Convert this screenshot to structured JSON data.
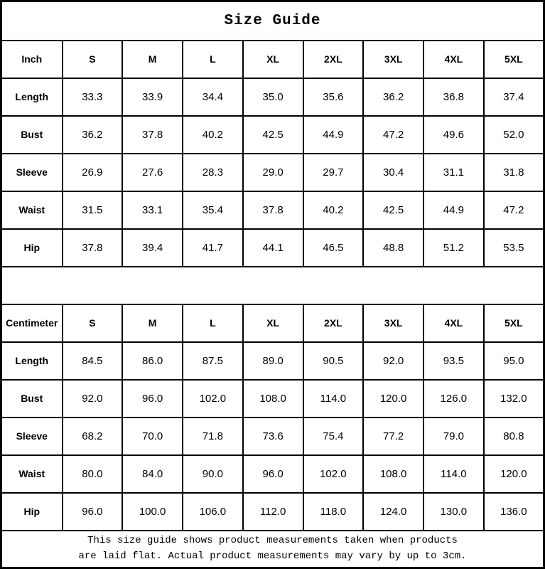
{
  "title": "Size Guide",
  "tables": [
    {
      "unit_label": "Inch",
      "size_headers": [
        "S",
        "M",
        "L",
        "XL",
        "2XL",
        "3XL",
        "4XL",
        "5XL"
      ],
      "rows": [
        {
          "label": "Length",
          "values": [
            "33.3",
            "33.9",
            "34.4",
            "35.0",
            "35.6",
            "36.2",
            "36.8",
            "37.4"
          ]
        },
        {
          "label": "Bust",
          "values": [
            "36.2",
            "37.8",
            "40.2",
            "42.5",
            "44.9",
            "47.2",
            "49.6",
            "52.0"
          ]
        },
        {
          "label": "Sleeve",
          "values": [
            "26.9",
            "27.6",
            "28.3",
            "29.0",
            "29.7",
            "30.4",
            "31.1",
            "31.8"
          ]
        },
        {
          "label": "Waist",
          "values": [
            "31.5",
            "33.1",
            "35.4",
            "37.8",
            "40.2",
            "42.5",
            "44.9",
            "47.2"
          ]
        },
        {
          "label": "Hip",
          "values": [
            "37.8",
            "39.4",
            "41.7",
            "44.1",
            "46.5",
            "48.8",
            "51.2",
            "53.5"
          ]
        }
      ]
    },
    {
      "unit_label": "Centimeter",
      "size_headers": [
        "S",
        "M",
        "L",
        "XL",
        "2XL",
        "3XL",
        "4XL",
        "5XL"
      ],
      "rows": [
        {
          "label": "Length",
          "values": [
            "84.5",
            "86.0",
            "87.5",
            "89.0",
            "90.5",
            "92.0",
            "93.5",
            "95.0"
          ]
        },
        {
          "label": "Bust",
          "values": [
            "92.0",
            "96.0",
            "102.0",
            "108.0",
            "114.0",
            "120.0",
            "126.0",
            "132.0"
          ]
        },
        {
          "label": "Sleeve",
          "values": [
            "68.2",
            "70.0",
            "71.8",
            "73.6",
            "75.4",
            "77.2",
            "79.0",
            "80.8"
          ]
        },
        {
          "label": "Waist",
          "values": [
            "80.0",
            "84.0",
            "90.0",
            "96.0",
            "102.0",
            "108.0",
            "114.0",
            "120.0"
          ]
        },
        {
          "label": "Hip",
          "values": [
            "96.0",
            "100.0",
            "106.0",
            "112.0",
            "118.0",
            "124.0",
            "130.0",
            "136.0"
          ]
        }
      ]
    }
  ],
  "footnote_lines": [
    "This size guide shows product measurements taken when products",
    "are laid flat. Actual product measurements may vary by up to 3cm."
  ],
  "colors": {
    "border": "#000000",
    "text": "#000000",
    "background": "#ffffff"
  }
}
